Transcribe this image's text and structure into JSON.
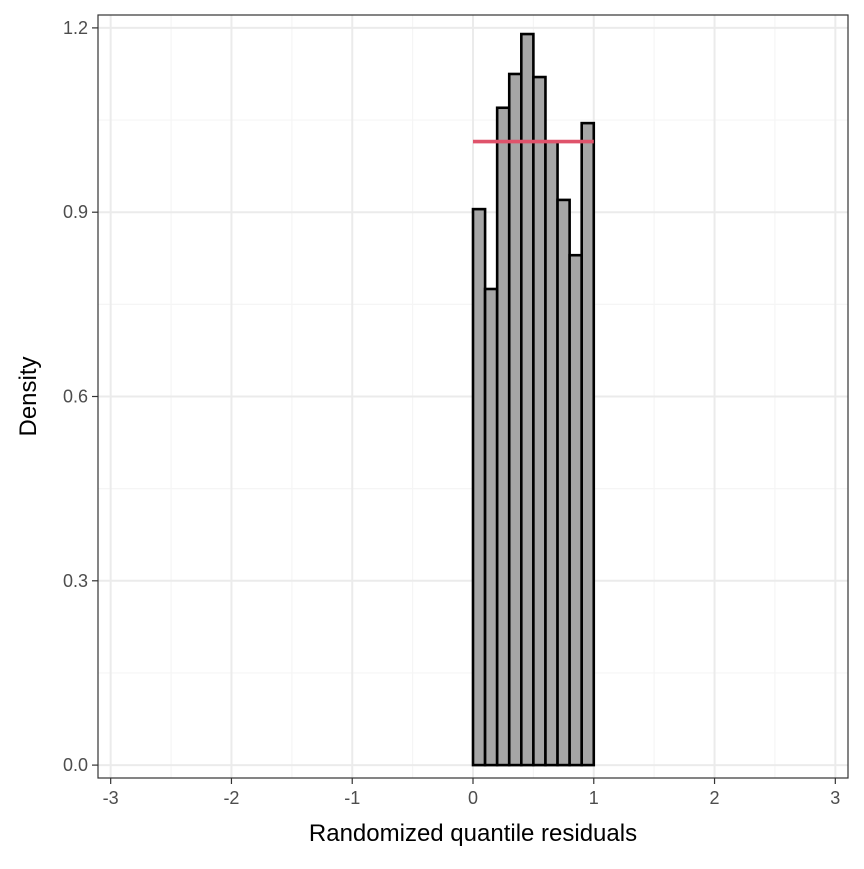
{
  "chart_data": {
    "type": "bar",
    "title": "",
    "xlabel": "Randomized quantile residuals",
    "ylabel": "Density",
    "xlim": [
      -3,
      3
    ],
    "ylim": [
      0,
      1.2
    ],
    "x_ticks": [
      -3,
      -2,
      -1,
      0,
      1,
      2,
      3
    ],
    "x_tick_labels": [
      "-3",
      "-2",
      "-1",
      "0",
      "1",
      "2",
      "3"
    ],
    "y_ticks": [
      0,
      0.3,
      0.6,
      0.9,
      1.2
    ],
    "y_tick_labels": [
      "0.0",
      "0.3",
      "0.6",
      "0.9",
      "1.2"
    ],
    "grid": true,
    "legend": "none",
    "histogram": {
      "bin_edges": [
        0,
        0.1,
        0.2,
        0.3,
        0.4,
        0.5,
        0.6,
        0.7,
        0.8,
        0.9,
        1.0
      ],
      "density": [
        0.905,
        0.775,
        1.07,
        1.125,
        1.19,
        1.12,
        1.015,
        0.92,
        0.83,
        1.045
      ],
      "fill_color": "#a6a6a6",
      "edge_color": "#000000"
    },
    "reference_line": {
      "x_start": 0,
      "x_end": 1,
      "y": 1.015,
      "color": "#df536b"
    },
    "colors": {
      "panel_border": "#333333",
      "grid_major": "#ebebeb",
      "grid_minor": "#f5f5f5",
      "tick_label": "#4d4d4d"
    }
  }
}
